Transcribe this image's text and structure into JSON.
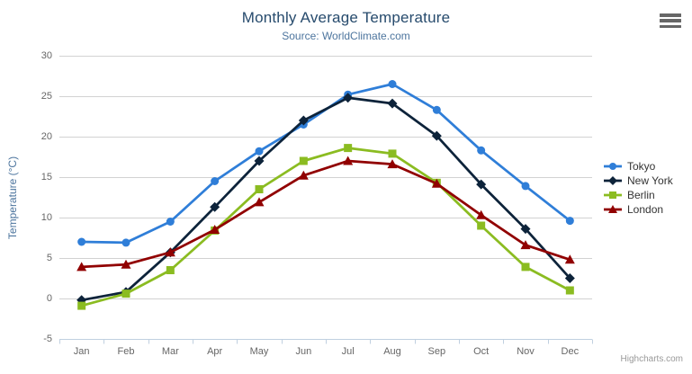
{
  "chart_data": {
    "type": "line",
    "title": "Monthly Average Temperature",
    "subtitle": "Source: WorldClimate.com",
    "xlabel": "",
    "ylabel": "Temperature (°C)",
    "ylim": [
      -5,
      30
    ],
    "ytick_interval": 5,
    "yticks": [
      30,
      25,
      20,
      15,
      10,
      5,
      0,
      -5
    ],
    "grid": true,
    "legend_position": "right",
    "categories": [
      "Jan",
      "Feb",
      "Mar",
      "Apr",
      "May",
      "Jun",
      "Jul",
      "Aug",
      "Sep",
      "Oct",
      "Nov",
      "Dec"
    ],
    "series": [
      {
        "name": "Tokyo",
        "color": "#2f7ed8",
        "marker": "circle",
        "values": [
          7.0,
          6.9,
          9.5,
          14.5,
          18.2,
          21.5,
          25.2,
          26.5,
          23.3,
          18.3,
          13.9,
          9.6
        ]
      },
      {
        "name": "New York",
        "color": "#0d233a",
        "marker": "diamond",
        "values": [
          -0.2,
          0.8,
          5.7,
          11.3,
          17.0,
          22.0,
          24.8,
          24.1,
          20.1,
          14.1,
          8.6,
          2.5
        ]
      },
      {
        "name": "Berlin",
        "color": "#8bbc21",
        "marker": "square",
        "values": [
          -0.9,
          0.6,
          3.5,
          8.4,
          13.5,
          17.0,
          18.6,
          17.9,
          14.3,
          9.0,
          3.9,
          1.0
        ]
      },
      {
        "name": "London",
        "color": "#910000",
        "marker": "triangle",
        "values": [
          3.9,
          4.2,
          5.7,
          8.5,
          11.9,
          15.2,
          17.0,
          16.6,
          14.2,
          10.3,
          6.6,
          4.8
        ]
      }
    ],
    "colors": {
      "title": "#274b6d",
      "subtitle": "#4d759e",
      "axis_labels": "#666666",
      "grid_line": "#d2d2d2",
      "axis_line": "#c0d0e0",
      "legend_text": "#333333",
      "credits_text": "#999999"
    }
  },
  "credits": {
    "label": "Highcharts.com"
  }
}
